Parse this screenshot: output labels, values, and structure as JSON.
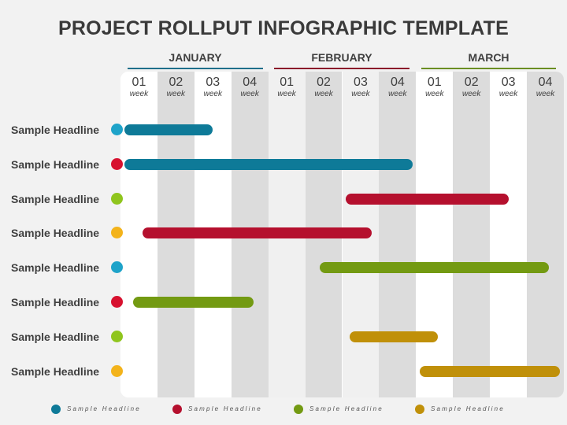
{
  "title": "PROJECT ROLLPUT INFOGRAPHIC TEMPLATE",
  "colors": {
    "blue": "#0e7a98",
    "red": "#b5102e",
    "green": "#739a12",
    "gold": "#c09009",
    "dot_blue": "#1ea3c9",
    "dot_red": "#d7112f",
    "dot_green": "#8fc51d",
    "dot_gold": "#f3b31b"
  },
  "months": [
    {
      "name": "JANUARY",
      "color": "#1f6f8b"
    },
    {
      "name": "FEBRUARY",
      "color": "#8b1a2b"
    },
    {
      "name": "MARCH",
      "color": "#6b8e23"
    }
  ],
  "week_unit": "week",
  "weeks": [
    "01",
    "02",
    "03",
    "04",
    "01",
    "02",
    "03",
    "04",
    "01",
    "02",
    "03",
    "04"
  ],
  "rows": [
    {
      "label": "Sample Headline",
      "dot": "#1ea3c9",
      "bar": "#0e7a98",
      "start": 0.1,
      "end": 2.5
    },
    {
      "label": "Sample Headline",
      "dot": "#d7112f",
      "bar": "#0e7a98",
      "start": 0.1,
      "end": 7.9
    },
    {
      "label": "Sample Headline",
      "dot": "#8fc51d",
      "bar": "#b5102e",
      "start": 6.1,
      "end": 10.5
    },
    {
      "label": "Sample Headline",
      "dot": "#f3b31b",
      "bar": "#b5102e",
      "start": 0.6,
      "end": 6.8
    },
    {
      "label": "Sample Headline",
      "dot": "#1ea3c9",
      "bar": "#739a12",
      "start": 5.4,
      "end": 11.6
    },
    {
      "label": "Sample Headline",
      "dot": "#d7112f",
      "bar": "#739a12",
      "start": 0.35,
      "end": 3.6
    },
    {
      "label": "Sample Headline",
      "dot": "#8fc51d",
      "bar": "#c09009",
      "start": 6.2,
      "end": 8.6
    },
    {
      "label": "Sample Headline",
      "dot": "#f3b31b",
      "bar": "#c09009",
      "start": 8.1,
      "end": 12.0
    }
  ],
  "legend": [
    {
      "label": "Sample Headline",
      "color": "#0e7a98"
    },
    {
      "label": "Sample Headline",
      "color": "#b5102e"
    },
    {
      "label": "Sample Headline",
      "color": "#739a12"
    },
    {
      "label": "Sample Headline",
      "color": "#c09009"
    }
  ]
}
